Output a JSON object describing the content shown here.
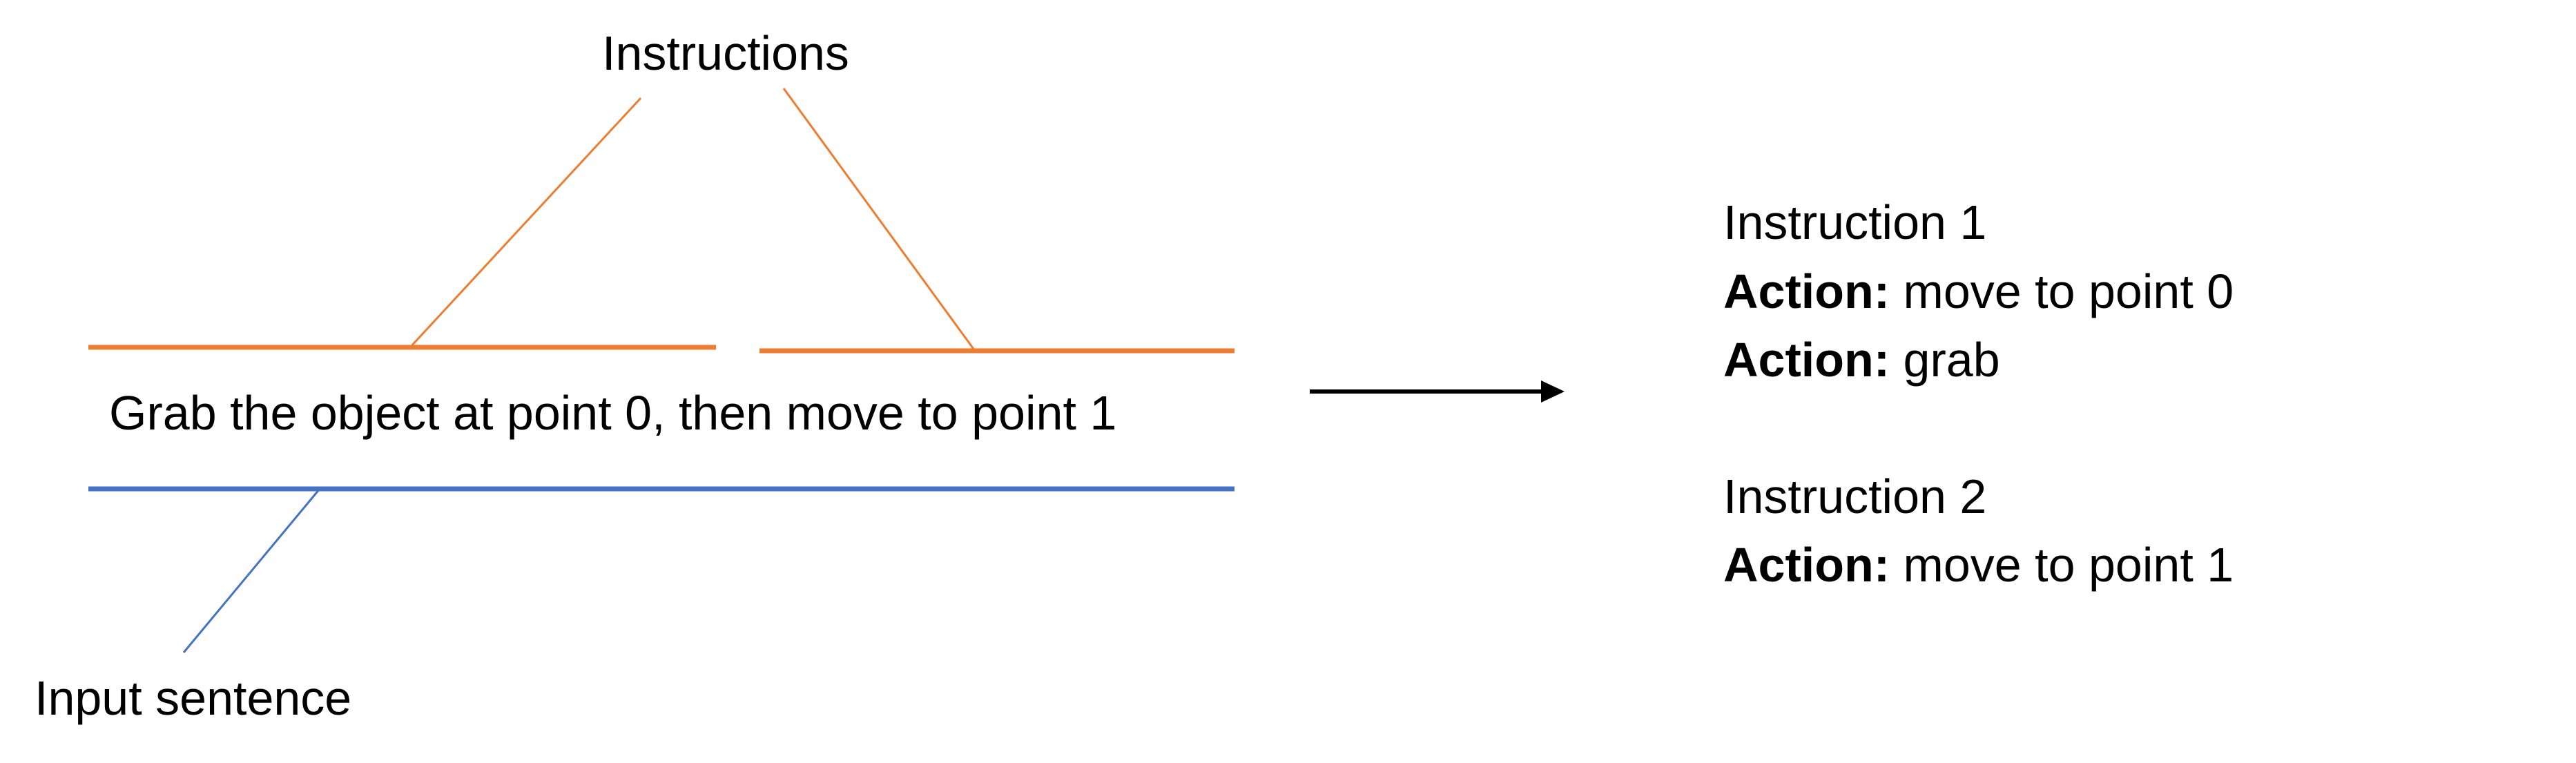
{
  "diagram": {
    "instructions_label": "Instructions",
    "input_sentence_label": "Input sentence",
    "sentence": "Grab the object at point 0, then move to point 1",
    "output": {
      "instruction_1": {
        "title": "Instruction 1",
        "actions": [
          {
            "key": "Action:",
            "value": " move to point 0"
          },
          {
            "key": "Action:",
            "value": " grab"
          }
        ]
      },
      "instruction_2": {
        "title": "Instruction 2",
        "actions": [
          {
            "key": "Action:",
            "value": " move to point 1"
          }
        ]
      }
    },
    "colors": {
      "instruction_bracket": "#ED7D31",
      "input_bracket": "#4472C4",
      "arrow": "#000000"
    }
  }
}
